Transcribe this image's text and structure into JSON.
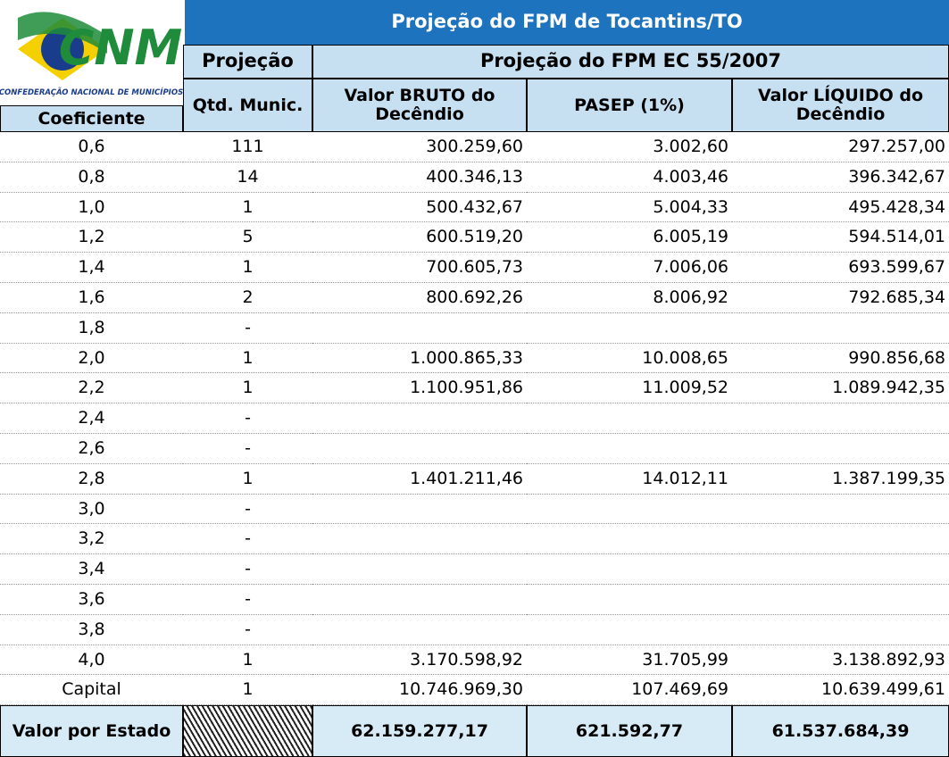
{
  "title": "Projeção do FPM de Tocantins/TO",
  "logo": {
    "name": "CNM",
    "subtitle": "CONFEDERAÇÃO NACIONAL DE MUNICÍPIOS"
  },
  "table": {
    "group_headers": [
      "Projeção",
      "Projeção do FPM EC 55/2007"
    ],
    "headers": [
      "Coeficiente",
      "Qtd. Munic.",
      "Valor BRUTO do Decêndio",
      "PASEP (1%)",
      "Valor LÍQUIDO do Decêndio"
    ],
    "rows": [
      {
        "coef": "0,6",
        "qtd": "111",
        "bruto": "300.259,60",
        "pasep": "3.002,60",
        "liquido": "297.257,00"
      },
      {
        "coef": "0,8",
        "qtd": "14",
        "bruto": "400.346,13",
        "pasep": "4.003,46",
        "liquido": "396.342,67"
      },
      {
        "coef": "1,0",
        "qtd": "1",
        "bruto": "500.432,67",
        "pasep": "5.004,33",
        "liquido": "495.428,34"
      },
      {
        "coef": "1,2",
        "qtd": "5",
        "bruto": "600.519,20",
        "pasep": "6.005,19",
        "liquido": "594.514,01"
      },
      {
        "coef": "1,4",
        "qtd": "1",
        "bruto": "700.605,73",
        "pasep": "7.006,06",
        "liquido": "693.599,67"
      },
      {
        "coef": "1,6",
        "qtd": "2",
        "bruto": "800.692,26",
        "pasep": "8.006,92",
        "liquido": "792.685,34"
      },
      {
        "coef": "1,8",
        "qtd": "-"
      },
      {
        "coef": "2,0",
        "qtd": "1",
        "bruto": "1.000.865,33",
        "pasep": "10.008,65",
        "liquido": "990.856,68"
      },
      {
        "coef": "2,2",
        "qtd": "1",
        "bruto": "1.100.951,86",
        "pasep": "11.009,52",
        "liquido": "1.089.942,35"
      },
      {
        "coef": "2,4",
        "qtd": "-"
      },
      {
        "coef": "2,6",
        "qtd": "-"
      },
      {
        "coef": "2,8",
        "qtd": "1",
        "bruto": "1.401.211,46",
        "pasep": "14.012,11",
        "liquido": "1.387.199,35"
      },
      {
        "coef": "3,0",
        "qtd": "-"
      },
      {
        "coef": "3,2",
        "qtd": "-"
      },
      {
        "coef": "3,4",
        "qtd": "-"
      },
      {
        "coef": "3,6",
        "qtd": "-"
      },
      {
        "coef": "3,8",
        "qtd": "-"
      },
      {
        "coef": "4,0",
        "qtd": "1",
        "bruto": "3.170.598,92",
        "pasep": "31.705,99",
        "liquido": "3.138.892,93"
      },
      {
        "coef": "Capital",
        "qtd": "1",
        "bruto": "10.746.969,30",
        "pasep": "107.469,69",
        "liquido": "10.639.499,61"
      }
    ],
    "total": {
      "label": "Valor por Estado",
      "bruto": "62.159.277,17",
      "pasep": "621.592,77",
      "liquido": "61.537.684,39"
    }
  }
}
